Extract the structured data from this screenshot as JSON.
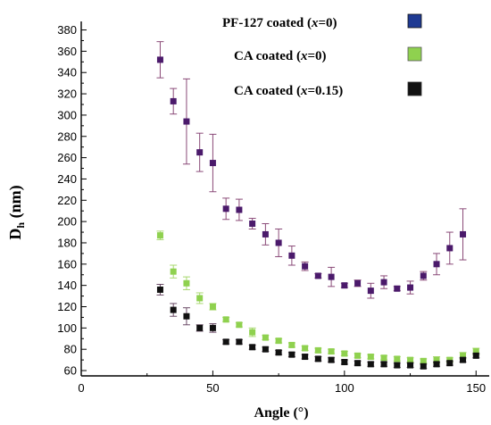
{
  "chart_data": {
    "type": "scatter",
    "xlabel": "Angle (°)",
    "ylabel_main": "D",
    "ylabel_sub": "h",
    "ylabel_unit": " (nm)",
    "xlim": [
      0,
      155
    ],
    "ylim": [
      55,
      388
    ],
    "xticks": [
      0,
      50,
      100,
      150
    ],
    "yticks": [
      60,
      80,
      100,
      120,
      140,
      160,
      180,
      200,
      220,
      240,
      260,
      280,
      300,
      320,
      340,
      360,
      380
    ],
    "grid": false,
    "legend_position": "top-right",
    "series": [
      {
        "legend_text": "PF-127 coated (",
        "legend_var": "x",
        "legend_suffix": "=0)",
        "legend_color": "#1f3a93",
        "color": "#4b1a6b",
        "errcolor": "#8a4a78",
        "x": [
          30,
          35,
          40,
          45,
          50,
          55,
          60,
          65,
          70,
          75,
          80,
          85,
          90,
          95,
          100,
          105,
          110,
          115,
          120,
          125,
          130,
          135,
          140,
          145
        ],
        "y": [
          352,
          313,
          294,
          265,
          255,
          212,
          211,
          198,
          188,
          180,
          168,
          158,
          149,
          148,
          140,
          142,
          135,
          143,
          137,
          138,
          149,
          160,
          175,
          188
        ],
        "err": [
          17,
          12,
          40,
          18,
          27,
          10,
          10,
          5,
          10,
          13,
          9,
          4,
          2,
          9,
          2,
          3,
          7,
          6,
          2,
          6,
          4,
          10,
          15,
          24
        ]
      },
      {
        "legend_text": "CA coated (",
        "legend_var": "x",
        "legend_suffix": "=0)",
        "legend_color": "#8fd14f",
        "color": "#8fd14f",
        "errcolor": "#a8d86f",
        "x": [
          30,
          35,
          40,
          45,
          50,
          55,
          60,
          65,
          70,
          75,
          80,
          85,
          90,
          95,
          100,
          105,
          110,
          115,
          120,
          125,
          130,
          135,
          140,
          145,
          150
        ],
        "y": [
          187,
          153,
          142,
          128,
          120,
          108,
          103,
          96,
          91,
          88,
          84,
          81,
          79,
          78,
          76,
          74,
          73,
          72,
          71,
          70,
          69,
          70,
          70,
          74,
          78
        ],
        "err": [
          4,
          6,
          6,
          5,
          3,
          2,
          2,
          4,
          2,
          2,
          2,
          2,
          2,
          2,
          2,
          2,
          2,
          2,
          2,
          2,
          2,
          3,
          2,
          3,
          3
        ]
      },
      {
        "legend_text": "CA coated (",
        "legend_var": "x",
        "legend_suffix": "=0.15)",
        "legend_color": "#111111",
        "color": "#111111",
        "errcolor": "#6a4a66",
        "x": [
          30,
          35,
          40,
          45,
          50,
          55,
          60,
          65,
          70,
          75,
          80,
          85,
          90,
          95,
          100,
          105,
          110,
          115,
          120,
          125,
          130,
          135,
          140,
          145,
          150
        ],
        "y": [
          136,
          117,
          111,
          100,
          100,
          87,
          87,
          82,
          80,
          77,
          75,
          73,
          71,
          70,
          68,
          67,
          66,
          66,
          65,
          65,
          64,
          66,
          67,
          70,
          74
        ],
        "err": [
          5,
          6,
          8,
          3,
          4,
          2,
          2,
          2,
          2,
          2,
          2,
          2,
          2,
          2,
          2,
          2,
          2,
          2,
          2,
          2,
          2,
          2,
          2,
          2,
          2
        ]
      }
    ]
  }
}
